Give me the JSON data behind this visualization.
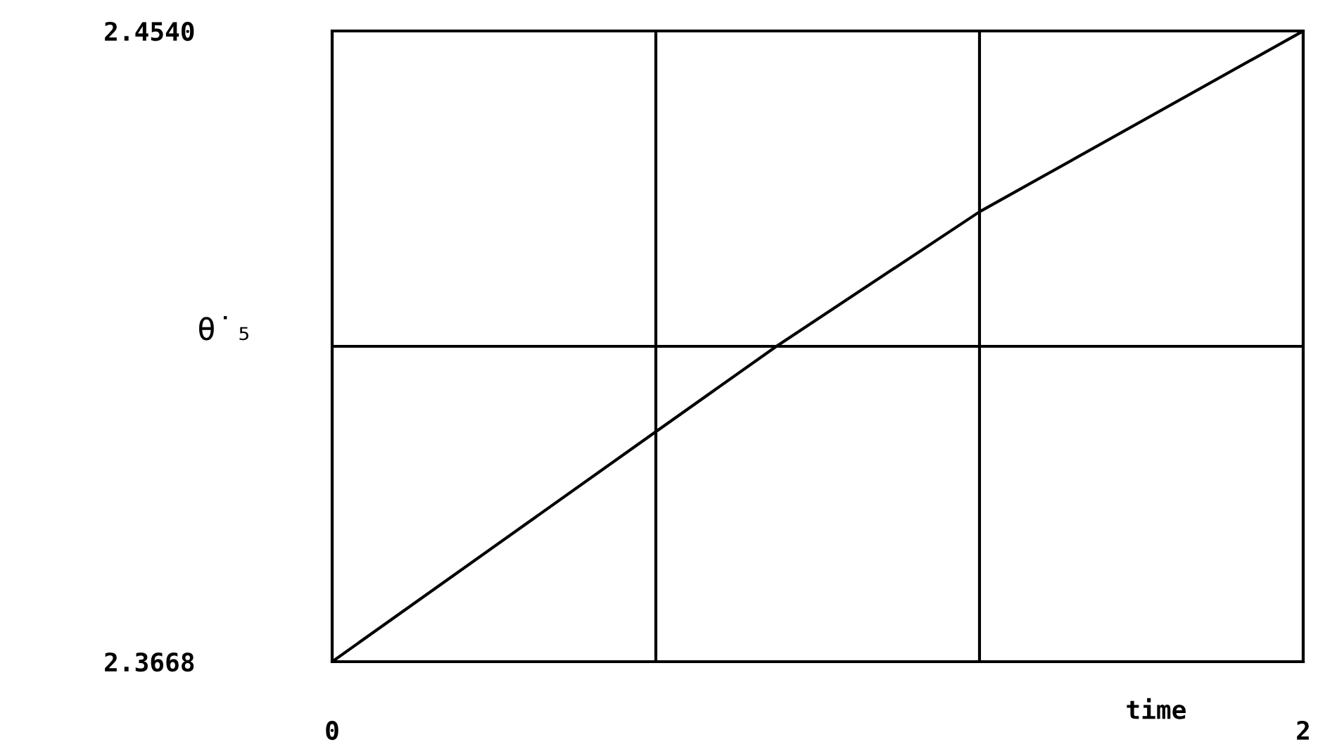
{
  "chart_data": {
    "type": "line",
    "xlabel": "time",
    "ylabel": "θ̇₅",
    "x": [
      0,
      0.6667,
      0.915,
      1.3333,
      2
    ],
    "series": [
      {
        "color": "#000000",
        "values": [
          2.3668,
          2.3986,
          2.4104,
          2.429,
          2.454
        ]
      }
    ],
    "xlim": [
      0,
      2
    ],
    "ylim": [
      2.3668,
      2.454
    ],
    "xticks": [
      0,
      {
        "value": 0.6667,
        "label": null
      },
      {
        "value": 1.3333,
        "label": null
      },
      2
    ],
    "yticks": [
      {
        "value": 2.3668,
        "label": "2.3668"
      },
      {
        "value": 2.4104,
        "label": null
      },
      {
        "value": 2.454,
        "label": "2.4540"
      }
    ],
    "grid": true,
    "marker": "none",
    "line_style": "solid"
  }
}
